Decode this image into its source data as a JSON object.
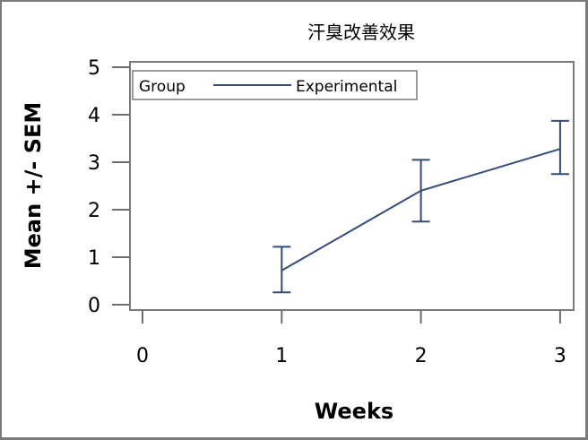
{
  "chart_data": {
    "type": "line",
    "title": "汗臭改善效果",
    "xlabel": "Weeks",
    "ylabel": "Mean +/- SEM",
    "x_ticks": [
      "0",
      "1",
      "2",
      "3"
    ],
    "y_ticks": [
      "0",
      "1",
      "2",
      "3",
      "4",
      "5"
    ],
    "xlim": [
      0,
      3
    ],
    "ylim": [
      0,
      5
    ],
    "grid": false,
    "legend": {
      "title": "Group",
      "entries": [
        "Experimental"
      ],
      "position": "top-left inside"
    },
    "series": [
      {
        "name": "Experimental",
        "color": "#344a78",
        "x": [
          1,
          2,
          3
        ],
        "mean": [
          0.72,
          2.4,
          3.28
        ],
        "lower": [
          0.26,
          1.75,
          2.75
        ],
        "upper": [
          1.22,
          3.05,
          3.87
        ]
      }
    ]
  },
  "colors": {
    "series": "#344a78",
    "frame": "#7a7a7a",
    "axis": "#6e6e6e"
  }
}
